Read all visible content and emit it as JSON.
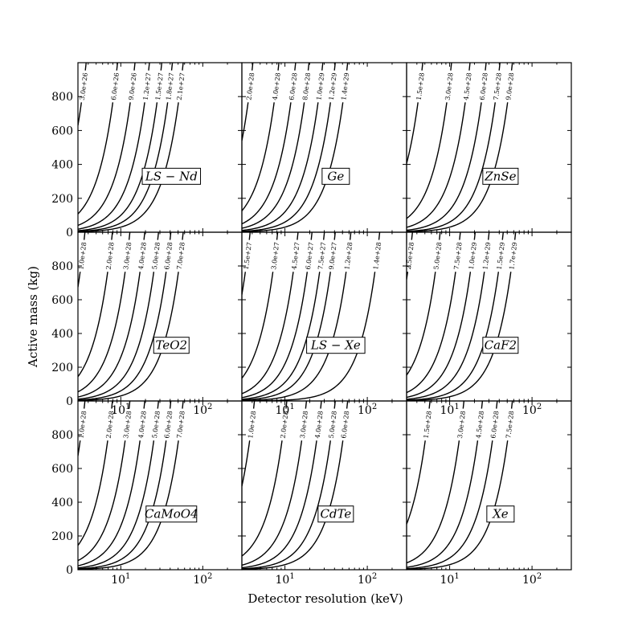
{
  "figure": {
    "xlabel": "Detector resolution (keV)",
    "ylabel": "Active mass (kg)"
  },
  "chart_data": {
    "type": "line",
    "layout": "3x3 grid of contour panels",
    "xscale": "log",
    "xlim": [
      3,
      300
    ],
    "ylim": [
      0,
      1000
    ],
    "x_ticks": [
      10,
      100
    ],
    "x_tick_labels": [
      "10^1",
      "10^2"
    ],
    "y_ticks": [
      0,
      200,
      400,
      600,
      800
    ],
    "y_tick_labels": [
      "0",
      "200",
      "400",
      "600",
      "800"
    ],
    "panels": [
      {
        "name": "LS−Nd",
        "name_text": "LS − Nd",
        "contours": [
          {
            "label": "2.1e+27",
            "p": 0.3
          },
          {
            "label": "1.8e+27",
            "p": 0.55
          },
          {
            "label": "1.5e+27",
            "p": 1.0
          },
          {
            "label": "1.2e+27",
            "p": 2.0
          },
          {
            "label": "9.0e+26",
            "p": 4.5
          },
          {
            "label": "6.0e+26",
            "p": 12
          },
          {
            "label": "3.0e+26",
            "p": 70
          }
        ]
      },
      {
        "name": "Ge",
        "name_text": "Ge",
        "contours": [
          {
            "label": "1.4e+29",
            "p": 0.3
          },
          {
            "label": "1.2e+29",
            "p": 0.6
          },
          {
            "label": "1.0e+29",
            "p": 1.2
          },
          {
            "label": "8.0e+28",
            "p": 2.6
          },
          {
            "label": "6.0e+28",
            "p": 5.5
          },
          {
            "label": "4.0e+28",
            "p": 14
          },
          {
            "label": "2.0e+28",
            "p": 60
          }
        ]
      },
      {
        "name": "ZnSe",
        "name_text": "ZnSe",
        "contours": [
          {
            "label": "9.0e+28",
            "p": 0.3
          },
          {
            "label": "7.5e+28",
            "p": 0.6
          },
          {
            "label": "6.0e+28",
            "p": 1.3
          },
          {
            "label": "4.5e+28",
            "p": 3.2
          },
          {
            "label": "3.0e+28",
            "p": 9
          },
          {
            "label": "1.5e+28",
            "p": 45
          }
        ]
      },
      {
        "name": "TeO2",
        "name_text": "TeO2",
        "contours": [
          {
            "label": "7.0e+28",
            "p": 0.3
          },
          {
            "label": "6.0e+28",
            "p": 0.6
          },
          {
            "label": "5.0e+28",
            "p": 1.2
          },
          {
            "label": "4.0e+28",
            "p": 2.6
          },
          {
            "label": "3.0e+28",
            "p": 6
          },
          {
            "label": "2.0e+28",
            "p": 16
          },
          {
            "label": "1.0e+28",
            "p": 75
          }
        ]
      },
      {
        "name": "LS−Xe",
        "name_text": "LS − Xe",
        "contours": [
          {
            "label": "1.4e+28",
            "p": 0.05
          },
          {
            "label": "1.2e+28",
            "p": 0.25
          },
          {
            "label": "9.0e+27",
            "p": 0.6
          },
          {
            "label": "7.5e+27",
            "p": 1.1
          },
          {
            "label": "6.0e+27",
            "p": 2.2
          },
          {
            "label": "4.5e+27",
            "p": 4.8
          },
          {
            "label": "3.0e+27",
            "p": 15
          },
          {
            "label": "1.5e+27",
            "p": 70
          }
        ]
      },
      {
        "name": "CaF2",
        "name_text": "CaF2",
        "contours": [
          {
            "label": "1.7e+29",
            "p": 0.25
          },
          {
            "label": "1.5e+29",
            "p": 0.5
          },
          {
            "label": "1.2e+29",
            "p": 1.1
          },
          {
            "label": "1.0e+29",
            "p": 2.4
          },
          {
            "label": "7.5e+28",
            "p": 5.5
          },
          {
            "label": "5.0e+28",
            "p": 17
          },
          {
            "label": "2.5e+28",
            "p": 80
          }
        ]
      },
      {
        "name": "CaMoO4",
        "name_text": "CaMoO4",
        "contours": [
          {
            "label": "7.0e+28",
            "p": 0.3
          },
          {
            "label": "6.0e+28",
            "p": 0.6
          },
          {
            "label": "5.0e+28",
            "p": 1.2
          },
          {
            "label": "4.0e+28",
            "p": 2.6
          },
          {
            "label": "3.0e+28",
            "p": 6
          },
          {
            "label": "2.0e+28",
            "p": 16
          },
          {
            "label": "1.0e+28",
            "p": 75
          }
        ]
      },
      {
        "name": "CdTe",
        "name_text": "CdTe",
        "contours": [
          {
            "label": "6.0e+28",
            "p": 0.3
          },
          {
            "label": "5.0e+28",
            "p": 0.6
          },
          {
            "label": "4.0e+28",
            "p": 1.3
          },
          {
            "label": "3.0e+28",
            "p": 3
          },
          {
            "label": "2.0e+28",
            "p": 9
          },
          {
            "label": "1.0e+28",
            "p": 55
          }
        ]
      },
      {
        "name": "Xe",
        "name_text": "Xe",
        "contours": [
          {
            "label": "7.5e+28",
            "p": 0.3
          },
          {
            "label": "6.0e+28",
            "p": 0.7
          },
          {
            "label": "4.5e+28",
            "p": 1.6
          },
          {
            "label": "3.0e+28",
            "p": 4.5
          },
          {
            "label": "1.5e+28",
            "p": 30
          }
        ]
      }
    ]
  }
}
